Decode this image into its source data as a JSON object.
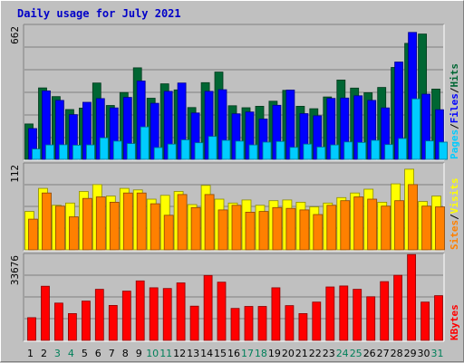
{
  "title": "Daily usage for July 2021",
  "chart_data": [
    {
      "type": "bar",
      "panel": "hits-files-pages",
      "ymax_label": "662",
      "ylim": [
        0,
        662
      ],
      "legend_words": [
        "Pages",
        "Files",
        "Hits"
      ],
      "legend_separator": "/",
      "categories": [
        "1",
        "2",
        "3",
        "4",
        "5",
        "6",
        "7",
        "8",
        "9",
        "10",
        "11",
        "12",
        "13",
        "14",
        "15",
        "16",
        "17",
        "18",
        "19",
        "20",
        "21",
        "22",
        "23",
        "24",
        "25",
        "26",
        "27",
        "28",
        "29",
        "30",
        "31"
      ],
      "weekend_days": [
        "3",
        "4",
        "10",
        "11",
        "17",
        "18",
        "24",
        "25",
        "31"
      ],
      "series": [
        {
          "name": "Hits",
          "color": "#006633",
          "values": [
            175,
            353,
            310,
            246,
            253,
            377,
            266,
            330,
            452,
            302,
            373,
            343,
            256,
            379,
            431,
            265,
            255,
            262,
            287,
            341,
            262,
            250,
            308,
            392,
            352,
            329,
            355,
            454,
            573,
            619,
            347
          ]
        },
        {
          "name": "Files",
          "color": "#0000ff",
          "values": [
            152,
            338,
            291,
            221,
            282,
            300,
            254,
            306,
            387,
            277,
            336,
            377,
            229,
            336,
            344,
            225,
            234,
            199,
            267,
            342,
            226,
            215,
            301,
            303,
            314,
            291,
            254,
            481,
            627,
            322,
            245
          ]
        },
        {
          "name": "Pages",
          "color": "#00ccff",
          "values": [
            51,
            71,
            72,
            70,
            71,
            106,
            90,
            78,
            160,
            58,
            75,
            96,
            82,
            113,
            94,
            90,
            71,
            85,
            88,
            59,
            75,
            61,
            71,
            86,
            83,
            94,
            73,
            103,
            299,
            91,
            85
          ]
        }
      ]
    },
    {
      "type": "bar",
      "panel": "visits-sites",
      "ymax_label": "112",
      "ylim": [
        0,
        112
      ],
      "legend_words": [
        "Sites",
        "Visits"
      ],
      "legend_separator": "/",
      "categories": [
        "1",
        "2",
        "3",
        "4",
        "5",
        "6",
        "7",
        "8",
        "9",
        "10",
        "11",
        "12",
        "13",
        "14",
        "15",
        "16",
        "17",
        "18",
        "19",
        "20",
        "21",
        "22",
        "23",
        "24",
        "25",
        "26",
        "27",
        "28",
        "29",
        "30",
        "31"
      ],
      "series": [
        {
          "name": "Visits",
          "color": "#ffff00",
          "values": [
            50,
            80,
            58,
            61,
            76,
            85,
            70,
            80,
            78,
            66,
            71,
            76,
            59,
            84,
            66,
            61,
            65,
            58,
            64,
            65,
            62,
            56,
            61,
            68,
            74,
            79,
            62,
            86,
            105,
            63,
            70
          ]
        },
        {
          "name": "Sites",
          "color": "#ff8000",
          "values": [
            40,
            74,
            57,
            43,
            67,
            69,
            62,
            74,
            74,
            60,
            45,
            72,
            55,
            72,
            52,
            58,
            49,
            50,
            55,
            54,
            52,
            46,
            58,
            64,
            69,
            66,
            57,
            64,
            85,
            57,
            56
          ]
        }
      ]
    },
    {
      "type": "bar",
      "panel": "kbytes",
      "ymax_label": "33676",
      "ylim": [
        0,
        33676
      ],
      "legend_words": [
        "KBytes"
      ],
      "categories": [
        "1",
        "2",
        "3",
        "4",
        "5",
        "6",
        "7",
        "8",
        "9",
        "10",
        "11",
        "12",
        "13",
        "14",
        "15",
        "16",
        "17",
        "18",
        "19",
        "20",
        "21",
        "22",
        "23",
        "24",
        "25",
        "26",
        "27",
        "28",
        "29",
        "30",
        "31"
      ],
      "series": [
        {
          "name": "KBytes",
          "color": "#ff0000",
          "values": [
            8900,
            21200,
            14600,
            10500,
            15400,
            20000,
            13700,
            19300,
            23300,
            20600,
            20300,
            22500,
            13400,
            25400,
            22800,
            12500,
            13300,
            13300,
            20600,
            13600,
            10500,
            15000,
            20900,
            21300,
            20000,
            17100,
            23000,
            25500,
            33600,
            15000,
            17500
          ]
        }
      ]
    }
  ],
  "colors": {
    "hits": "#006633",
    "files": "#0000ff",
    "pages": "#00ccff",
    "visits": "#ffff00",
    "sites": "#ff8000",
    "kbytes": "#ff0000",
    "title": "#0000c8",
    "weekend": "#00805a"
  }
}
